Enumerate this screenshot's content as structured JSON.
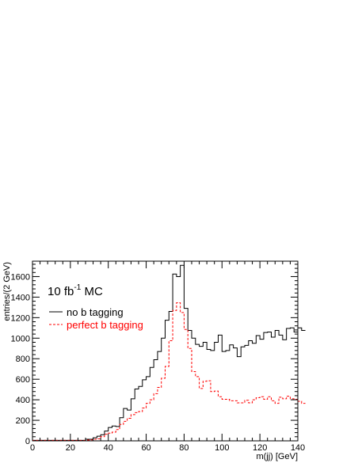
{
  "chart_data": {
    "type": "line",
    "style": "step-histogram",
    "xlabel": "m(jj) [GeV]",
    "ylabel": "entries/(2 GeV)",
    "xlim": [
      0,
      140
    ],
    "ylim": [
      0,
      1750
    ],
    "xticks": [
      0,
      20,
      40,
      60,
      80,
      100,
      120,
      140
    ],
    "yticks": [
      0,
      200,
      400,
      600,
      800,
      1000,
      1200,
      1400,
      1600
    ],
    "annotation": {
      "main": "10 fb",
      "sup": "-1",
      "suffix": " MC"
    },
    "legend_position": "top-left",
    "bin_width": 2,
    "bin_edges_start": 0,
    "series": [
      {
        "name": "no b tagging",
        "color": "#000000",
        "dash": "solid",
        "values": [
          5,
          5,
          5,
          5,
          5,
          5,
          5,
          5,
          5,
          5,
          5,
          5,
          5,
          5,
          15,
          15,
          30,
          45,
          60,
          95,
          130,
          145,
          140,
          225,
          315,
          300,
          410,
          505,
          530,
          595,
          625,
          715,
          790,
          870,
          1000,
          1175,
          1260,
          1625,
          1600,
          1710,
          1290,
          1075,
          1000,
          940,
          920,
          960,
          890,
          880,
          960,
          1030,
          870,
          880,
          935,
          905,
          820,
          915,
          930,
          975,
          950,
          1025,
          990,
          1055,
          1060,
          1010,
          1075,
          1030,
          985,
          1095,
          1100,
          1060,
          1100,
          1075
        ]
      },
      {
        "name": "perfect b tagging",
        "color": "#ff0000",
        "dash": "dashed",
        "values": [
          5,
          5,
          5,
          5,
          5,
          5,
          5,
          5,
          5,
          5,
          5,
          5,
          5,
          5,
          8,
          10,
          15,
          20,
          40,
          65,
          75,
          85,
          110,
          160,
          190,
          220,
          255,
          275,
          285,
          320,
          365,
          400,
          460,
          520,
          610,
          725,
          975,
          1270,
          1345,
          1250,
          1085,
          900,
          675,
          625,
          510,
          580,
          585,
          480,
          485,
          430,
          405,
          405,
          390,
          390,
          370,
          370,
          395,
          370,
          400,
          420,
          430,
          405,
          430,
          390,
          365,
          425,
          410,
          435,
          410,
          405,
          385,
          365
        ]
      }
    ]
  }
}
